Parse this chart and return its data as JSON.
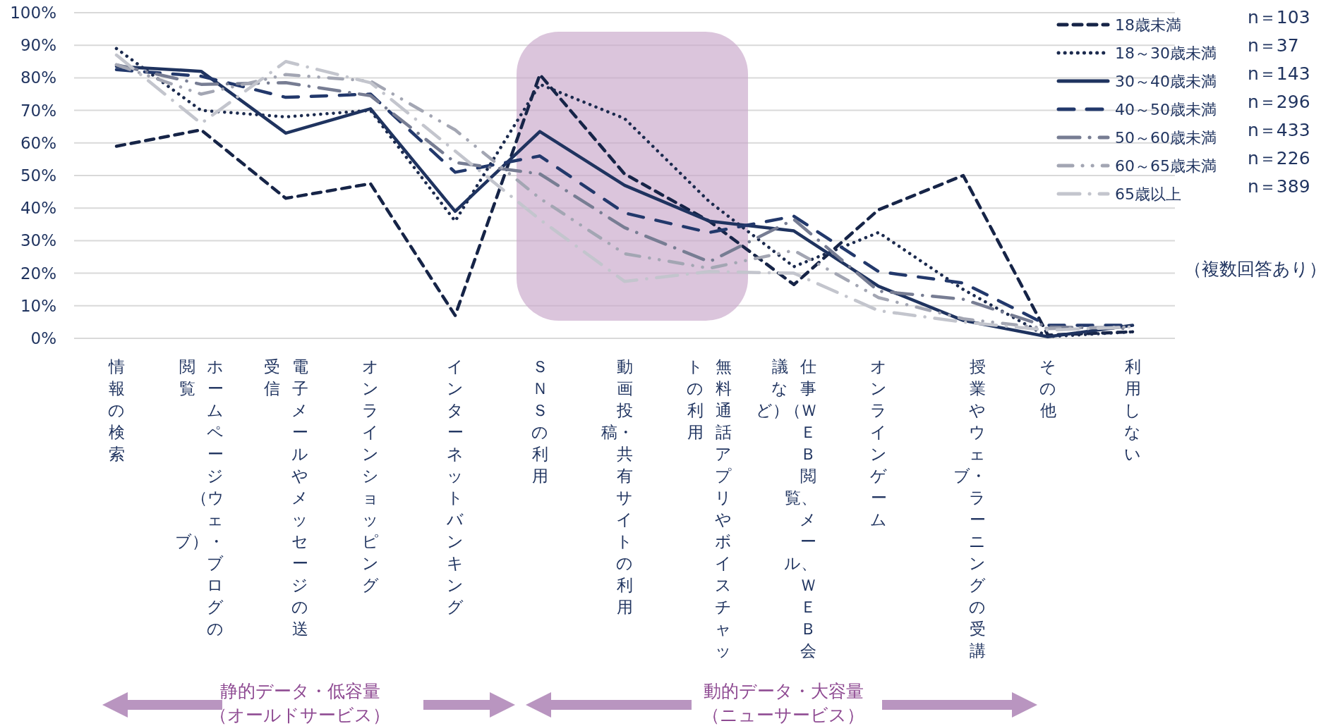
{
  "chart_data": {
    "type": "line",
    "categories": [
      "情報の検索",
      "ホームページ（ウェブ）・ブログの閲覧",
      "電子メールやメッセージの送受信",
      "オンラインショッピング",
      "インターネットバンキング",
      "ＳＮＳの利用",
      "動画投稿・共有サイトの利用",
      "無料通話アプリやボイスチャットの利用",
      "仕事（ＷＥＢ閲覧、メール、ＷＥＢ会議など）",
      "オンラインゲーム",
      "授業やウェブ・ラーニングの受講",
      "その他",
      "利用しない"
    ],
    "series": [
      {
        "name": "18歳未満",
        "color": "#162447",
        "line_style": "dashed",
        "values": [
          59,
          64,
          43,
          47.5,
          7,
          81,
          50.5,
          36,
          16.5,
          39.5,
          50,
          1,
          2
        ]
      },
      {
        "name": "18～30歳未満",
        "color": "#1b2a4e",
        "line_style": "dotted",
        "values": [
          89,
          70,
          68,
          70,
          36,
          78,
          67.5,
          42,
          22,
          32.5,
          15,
          0.5,
          2
        ]
      },
      {
        "name": "30～40歳未満",
        "color": "#1f335f",
        "line_style": "solid",
        "values": [
          83.5,
          82,
          63,
          70.5,
          39,
          63.5,
          47,
          36,
          33,
          16,
          5.5,
          0.5,
          4
        ]
      },
      {
        "name": "40～50歳未満",
        "color": "#22386b",
        "line_style": "long_dash",
        "values": [
          82.5,
          80.5,
          74,
          75,
          51,
          56,
          38.5,
          32.5,
          37.5,
          20.5,
          17,
          4,
          4
        ]
      },
      {
        "name": "50～60歳未満",
        "color": "#777d93",
        "line_style": "long_dash_dot",
        "values": [
          84,
          78,
          78.5,
          74.5,
          54,
          50.5,
          34,
          23.5,
          36.5,
          14.5,
          12,
          3.5,
          3
        ]
      },
      {
        "name": "60～65歳未満",
        "color": "#a3a6b3",
        "line_style": "long_dash_dot_dot",
        "values": [
          84,
          75,
          81,
          79,
          64,
          43,
          26,
          21.5,
          27,
          12.5,
          6,
          3,
          3.5
        ]
      },
      {
        "name": "65歳以上",
        "color": "#c3c5cd",
        "line_style": "long_dash_dot",
        "values": [
          87,
          66,
          85,
          78.5,
          57.5,
          36.5,
          17.5,
          20.5,
          20,
          8.5,
          5,
          2.5,
          3.5
        ]
      }
    ],
    "ylim": [
      0,
      100
    ],
    "yticks": [
      {
        "value": 0,
        "label": "0%"
      },
      {
        "value": 10,
        "label": "10%"
      },
      {
        "value": 20,
        "label": "20%"
      },
      {
        "value": 30,
        "label": "30%"
      },
      {
        "value": 40,
        "label": "40%"
      },
      {
        "value": 50,
        "label": "50%"
      },
      {
        "value": 60,
        "label": "60%"
      },
      {
        "value": 70,
        "label": "70%"
      },
      {
        "value": 80,
        "label": "80%"
      },
      {
        "value": 90,
        "label": "90%"
      },
      {
        "value": 100,
        "label": "100%"
      }
    ],
    "grid": "y",
    "legend": "top right",
    "marker": "none",
    "annotations": [
      "n＝103",
      "n＝37",
      "n＝143",
      "n＝296",
      "n＝433",
      "n＝226",
      "n＝389",
      "（複数回答あり）",
      "静的データ・低容量",
      "（オールドサービス）",
      "動的データ・大容量",
      "（ニューサービス）"
    ]
  }
}
